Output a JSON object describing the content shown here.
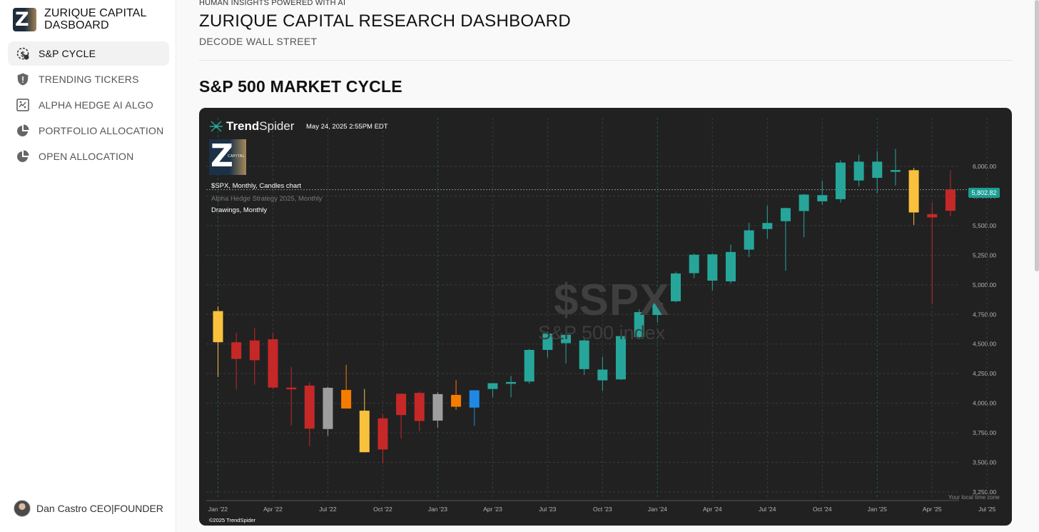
{
  "sidebar": {
    "brand_title": "ZURIQUE CAPITAL DASBOARD",
    "items": [
      {
        "label": "S&P CYCLE",
        "icon": "dollar-cycle-icon",
        "active": true
      },
      {
        "label": "TRENDING TICKERS",
        "icon": "warning-shield-icon",
        "active": false
      },
      {
        "label": "ALPHA HEDGE AI ALGO",
        "icon": "ai-chart-icon",
        "active": false
      },
      {
        "label": "PORTFOLIO ALLOCATION",
        "icon": "pie-chart-icon",
        "active": false
      },
      {
        "label": "OPEN ALLOCATION",
        "icon": "pie-chart-icon",
        "active": false
      }
    ],
    "user": "Dan Castro CEO|FOUNDER"
  },
  "header": {
    "eyebrow": "HUMAN INSIGHTS POWERED WITH AI",
    "title": "ZURIQUE CAPITAL RESEARCH DASHBOARD",
    "subtitle": "DECODE WALL STREET"
  },
  "section": {
    "title": "S&P 500 MARKET CYCLE"
  },
  "chart_widget": {
    "brand_bold": "Trend",
    "brand_light": "Spider",
    "date": "May 24, 2025 2:55PM EDT",
    "logo_caption": "CAPITAL",
    "series_label": "$SPX, Monthly, Candles chart",
    "strategy_label": "Alpha Hedge Strategy 2025, Monthly",
    "drawings_label": "Drawings, Monthly",
    "watermark_symbol": "$SPX",
    "watermark_name": "S&P 500 index",
    "last_price": "5,802.82",
    "timezone_note": "Your local time zone",
    "copyright": "©2025 TrendSpider"
  },
  "chart_data": {
    "type": "candlestick",
    "title": "$SPX, Monthly, Candles chart",
    "ylim": [
      3250,
      6100
    ],
    "yticks": [
      3250,
      3500,
      3750,
      4000,
      4250,
      4500,
      4750,
      5000,
      5250,
      5500,
      5750,
      6000
    ],
    "ytick_labels": [
      "3,250.00",
      "3,500.00",
      "3,750.00",
      "4,000.00",
      "4,250.00",
      "4,500.00",
      "4,750.00",
      "5,000.00",
      "5,250.00",
      "5,500.00",
      "5,750.00",
      "6,000.00"
    ],
    "xtick_labels": [
      "Jan '22",
      "Apr '22",
      "Jul '22",
      "Oct '22",
      "Jan '23",
      "Apr '23",
      "Jul '23",
      "Oct '23",
      "Jan '24",
      "Apr '24",
      "Jul '24",
      "Oct '24",
      "Jan '25",
      "Apr '25",
      "Jul '25"
    ],
    "colors": {
      "teal": "#26a69a",
      "red": "#c62828",
      "yellow": "#f9c23c",
      "orange": "#f57c00",
      "gray": "#9e9e9e",
      "blue": "#1e88e5"
    },
    "candles": [
      {
        "month": "Jan '22",
        "open": 4778,
        "high": 4818,
        "low": 4222,
        "close": 4515,
        "color": "yellow"
      },
      {
        "month": "Feb '22",
        "open": 4515,
        "high": 4595,
        "low": 4115,
        "close": 4374,
        "color": "red"
      },
      {
        "month": "Mar '22",
        "open": 4363,
        "high": 4637,
        "low": 4157,
        "close": 4530,
        "color": "red"
      },
      {
        "month": "Apr '22",
        "open": 4540,
        "high": 4593,
        "low": 4124,
        "close": 4132,
        "color": "red"
      },
      {
        "month": "May '22",
        "open": 4130,
        "high": 4307,
        "low": 3811,
        "close": 4132,
        "color": "red"
      },
      {
        "month": "Jun '22",
        "open": 4149,
        "high": 4177,
        "low": 3637,
        "close": 3785,
        "color": "red"
      },
      {
        "month": "Jul '22",
        "open": 3782,
        "high": 4140,
        "low": 3723,
        "close": 4130,
        "color": "gray"
      },
      {
        "month": "Aug '22",
        "open": 4112,
        "high": 4325,
        "low": 3955,
        "close": 3955,
        "color": "orange"
      },
      {
        "month": "Sep '22",
        "open": 3937,
        "high": 4120,
        "low": 3585,
        "close": 3586,
        "color": "yellow"
      },
      {
        "month": "Oct '22",
        "open": 3872,
        "high": 3906,
        "low": 3492,
        "close": 3609,
        "color": "red"
      },
      {
        "month": "Nov '22",
        "open": 4080,
        "high": 4080,
        "low": 3700,
        "close": 3900,
        "color": "red"
      },
      {
        "month": "Dec '22",
        "open": 4087,
        "high": 4100,
        "low": 3764,
        "close": 3850,
        "color": "red"
      },
      {
        "month": "Jan '23",
        "open": 3853,
        "high": 4095,
        "low": 3794,
        "close": 4077,
        "color": "gray"
      },
      {
        "month": "Feb '23",
        "open": 4070,
        "high": 4195,
        "low": 3943,
        "close": 3970,
        "color": "orange"
      },
      {
        "month": "Mar '23",
        "open": 3963,
        "high": 4110,
        "low": 3808,
        "close": 4109,
        "color": "blue"
      },
      {
        "month": "Apr '23",
        "open": 4120,
        "high": 4170,
        "low": 4049,
        "close": 4169,
        "color": "teal"
      },
      {
        "month": "May '23",
        "open": 4166,
        "high": 4231,
        "low": 4048,
        "close": 4179,
        "color": "teal"
      },
      {
        "month": "Jun '23",
        "open": 4183,
        "high": 4458,
        "low": 4166,
        "close": 4450,
        "color": "teal"
      },
      {
        "month": "Jul '23",
        "open": 4450,
        "high": 4607,
        "low": 4385,
        "close": 4588,
        "color": "teal"
      },
      {
        "month": "Aug '23",
        "open": 4578,
        "high": 4584,
        "low": 4335,
        "close": 4507,
        "color": "teal"
      },
      {
        "month": "Sep '23",
        "open": 4530,
        "high": 4541,
        "low": 4238,
        "close": 4288,
        "color": "teal"
      },
      {
        "month": "Oct '23",
        "open": 4284,
        "high": 4393,
        "low": 4103,
        "close": 4193,
        "color": "teal"
      },
      {
        "month": "Nov '23",
        "open": 4201,
        "high": 4587,
        "low": 4197,
        "close": 4567,
        "color": "teal"
      },
      {
        "month": "Dec '23",
        "open": 4559,
        "high": 4793,
        "low": 4546,
        "close": 4769,
        "color": "teal"
      },
      {
        "month": "Jan '24",
        "open": 4745,
        "high": 4931,
        "low": 4682,
        "close": 4845,
        "color": "teal"
      },
      {
        "month": "Feb '24",
        "open": 4861,
        "high": 5111,
        "low": 4853,
        "close": 5096,
        "color": "teal"
      },
      {
        "month": "Mar '24",
        "open": 5098,
        "high": 5264,
        "low": 5056,
        "close": 5254,
        "color": "teal"
      },
      {
        "month": "Apr '24",
        "open": 5257,
        "high": 5264,
        "low": 4953,
        "close": 5035,
        "color": "teal"
      },
      {
        "month": "May '24",
        "open": 5029,
        "high": 5341,
        "low": 5011,
        "close": 5277,
        "color": "teal"
      },
      {
        "month": "Jun '24",
        "open": 5297,
        "high": 5523,
        "low": 5234,
        "close": 5460,
        "color": "teal"
      },
      {
        "month": "Jul '24",
        "open": 5471,
        "high": 5669,
        "low": 5390,
        "close": 5522,
        "color": "teal"
      },
      {
        "month": "Aug '24",
        "open": 5537,
        "high": 5651,
        "low": 5119,
        "close": 5648,
        "color": "teal"
      },
      {
        "month": "Sep '24",
        "open": 5623,
        "high": 5767,
        "low": 5402,
        "close": 5762,
        "color": "teal"
      },
      {
        "month": "Oct '24",
        "open": 5757,
        "high": 5878,
        "low": 5675,
        "close": 5705,
        "color": "teal"
      },
      {
        "month": "Nov '24",
        "open": 5723,
        "high": 6053,
        "low": 5696,
        "close": 6032,
        "color": "teal"
      },
      {
        "month": "Dec '24",
        "open": 6040,
        "high": 6099,
        "low": 5832,
        "close": 5881,
        "color": "teal"
      },
      {
        "month": "Jan '25",
        "open": 5903,
        "high": 6128,
        "low": 5773,
        "close": 6040,
        "color": "teal"
      },
      {
        "month": "Feb '25",
        "open": 5969,
        "high": 6147,
        "low": 5837,
        "close": 5954,
        "color": "teal"
      },
      {
        "month": "Mar '25",
        "open": 5968,
        "high": 5987,
        "low": 5505,
        "close": 5611,
        "color": "yellow"
      },
      {
        "month": "Apr '25",
        "open": 5597,
        "high": 5695,
        "low": 4835,
        "close": 5569,
        "color": "red"
      },
      {
        "month": "May '25",
        "open": 5625,
        "high": 5968,
        "low": 5578,
        "close": 5803,
        "color": "red"
      }
    ]
  }
}
